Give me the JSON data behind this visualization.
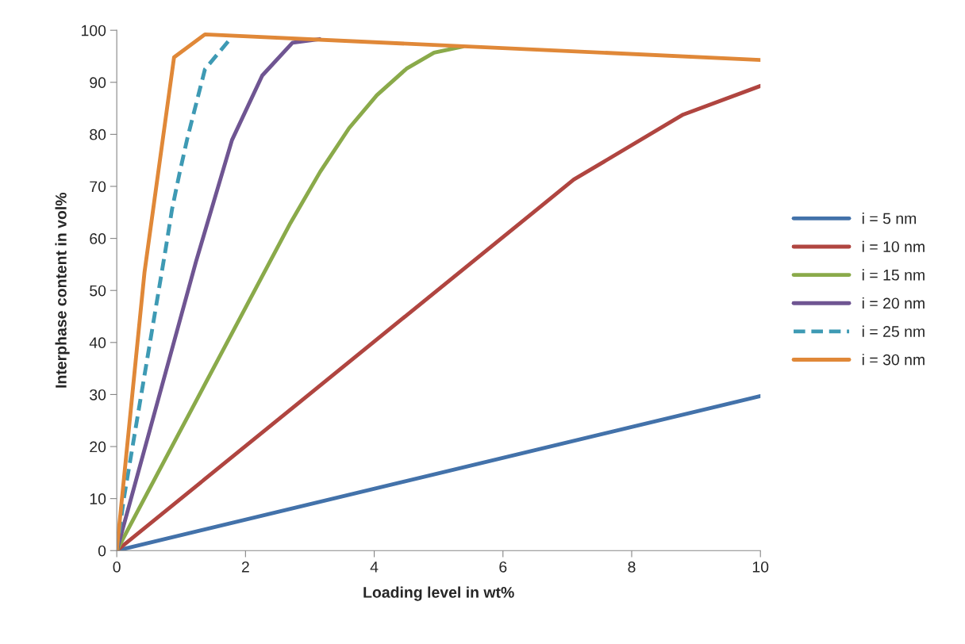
{
  "chart_data": {
    "type": "line",
    "xlabel": "Loading level in wt%",
    "ylabel": "Interphase content in vol%",
    "xlim": [
      0,
      10
    ],
    "xticks": [
      0,
      2,
      4,
      6,
      8,
      10
    ],
    "ylim": [
      0,
      100
    ],
    "yticks": [
      0,
      10,
      20,
      30,
      40,
      50,
      60,
      70,
      80,
      90,
      100
    ],
    "grid": false,
    "legend": "right",
    "marker": "none",
    "series": [
      {
        "name": "i = 5 nm",
        "color": "#4372aa",
        "x": [
          0,
          10
        ],
        "values": [
          0,
          29.7
        ]
      },
      {
        "name": "i = 10 nm",
        "color": "#b04540",
        "x": [
          0,
          7.1,
          8.8,
          10
        ],
        "values": [
          0,
          71.3,
          83.8,
          89.3
        ]
      },
      {
        "name": "i = 15 nm",
        "color": "#8aaa4a",
        "x": [
          0,
          0.9,
          1.8,
          2.7,
          3.16,
          3.61,
          4.04,
          4.5,
          4.93,
          5.38
        ],
        "values": [
          0,
          21,
          42,
          63,
          72.8,
          81.2,
          87.5,
          92.6,
          95.7,
          96.9
        ]
      },
      {
        "name": "i = 20 nm",
        "color": "#6f5592",
        "x": [
          0,
          1.23,
          1.79,
          2.26,
          2.73,
          3.15
        ],
        "values": [
          0,
          55.5,
          78.9,
          91.3,
          97.6,
          98.3
        ]
      },
      {
        "name": "i = 25 nm",
        "color": "#3e9ab4",
        "line_style": "dashed",
        "x": [
          0,
          0.11,
          0.76,
          0.86,
          0.98,
          1.1,
          1.37,
          1.78
        ],
        "values": [
          0,
          10,
          58,
          65.7,
          72.8,
          79.4,
          92.5,
          98.6
        ]
      },
      {
        "name": "i = 30 nm",
        "color": "#e08838",
        "x": [
          0,
          0.43,
          0.89,
          1.37,
          10
        ],
        "values": [
          0,
          53.4,
          94.8,
          99.2,
          94.3
        ]
      }
    ]
  }
}
